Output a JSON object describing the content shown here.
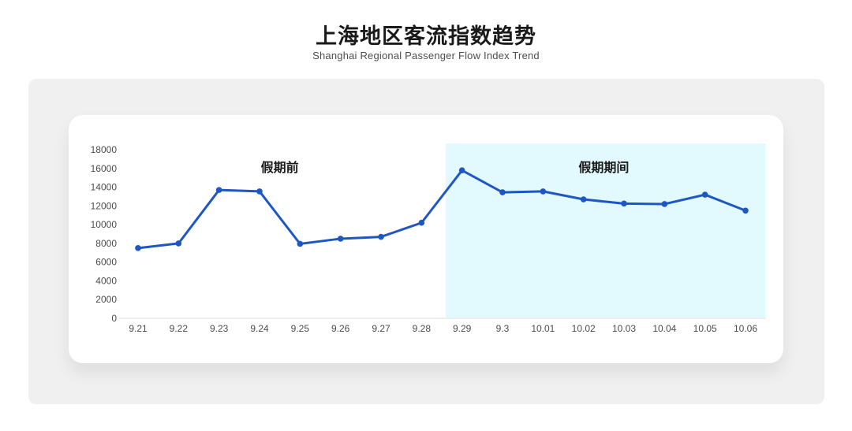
{
  "page": {
    "title": "上海地区客流指数趋势",
    "subtitle": "Shanghai Regional Passenger Flow Index Trend"
  },
  "chart_data": {
    "type": "line",
    "title": "上海地区客流指数趋势",
    "subtitle": "Shanghai Regional Passenger Flow Index Trend",
    "categories": [
      "9.21",
      "9.22",
      "9.23",
      "9.24",
      "9.25",
      "9.26",
      "9.27",
      "9.28",
      "9.29",
      "9.3",
      "10.01",
      "10.02",
      "10.03",
      "10.04",
      "10.05",
      "10.06"
    ],
    "series": [
      {
        "name": "客流指数",
        "values": [
          7500,
          8000,
          13700,
          13550,
          7950,
          8500,
          8700,
          10200,
          15800,
          13450,
          13550,
          12700,
          12250,
          12200,
          13200,
          11500
        ]
      }
    ],
    "y_ticks": [
      0,
      2000,
      4000,
      6000,
      8000,
      10000,
      12000,
      14000,
      16000,
      18000
    ],
    "ylim": [
      0,
      18000
    ],
    "xlabel": "",
    "ylabel": "",
    "grid": false,
    "legend": "none",
    "annotations": [
      {
        "label": "假期前",
        "region": "pre_holiday"
      },
      {
        "label": "假期期间",
        "region": "holiday"
      }
    ],
    "highlight_region": {
      "from_category": "9.29",
      "to_category": "10.06",
      "color": "#e2f9fd"
    },
    "colors": {
      "line": "#1e56c4",
      "point": "#1e56c4",
      "axis_line": "#e3e3e3",
      "tick_label": "#4c4c4c",
      "annotation_text": "#1a1a1a",
      "card_bg": "#ffffff",
      "panel_bg": "#f0f0f0"
    }
  }
}
